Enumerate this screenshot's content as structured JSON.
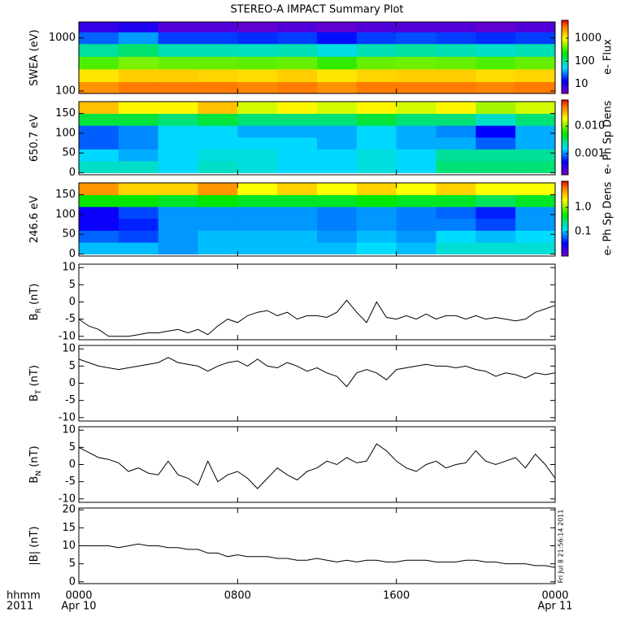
{
  "title": "STEREO-A IMPACT Summary Plot",
  "timestamp": "Fri Jul  8 21:56:14 2011",
  "xaxis": {
    "xlim": [
      0,
      24
    ],
    "xticks": [
      {
        "value": 0,
        "label": "0000"
      },
      {
        "value": 8,
        "label": "0800"
      },
      {
        "value": 16,
        "label": "1600"
      },
      {
        "value": 24,
        "label": "0000"
      }
    ],
    "dates": [
      {
        "value": 0,
        "label": "Apr 10"
      },
      {
        "value": 24,
        "label": "Apr 11"
      }
    ],
    "label": [
      "hhmm",
      "2011"
    ]
  },
  "chart_data": [
    {
      "type": "heatmap",
      "ylabel": [
        "SWEA (eV)"
      ],
      "ylog": true,
      "ylim": [
        90,
        2000
      ],
      "yticks": [
        100,
        1000
      ],
      "xbins": [
        0,
        2,
        4,
        6,
        8,
        10,
        12,
        14,
        16,
        18,
        20,
        22,
        24
      ],
      "ybins": [
        90,
        150,
        260,
        450,
        780,
        1300,
        2000
      ],
      "z": [
        [
          2500,
          3000,
          3000,
          3000,
          2800,
          3000,
          2500,
          3000,
          3000,
          3000,
          2800,
          3000
        ],
        [
          1200,
          1500,
          1500,
          1400,
          1300,
          1500,
          1200,
          1400,
          1500,
          1500,
          1300,
          1400
        ],
        [
          350,
          450,
          400,
          400,
          380,
          400,
          300,
          400,
          420,
          400,
          350,
          400
        ],
        [
          90,
          120,
          80,
          80,
          75,
          80,
          60,
          80,
          90,
          80,
          70,
          80
        ],
        [
          25,
          35,
          20,
          20,
          18,
          20,
          15,
          20,
          22,
          20,
          18,
          20
        ],
        [
          8,
          10,
          6,
          6,
          5,
          6,
          5,
          6,
          6,
          6,
          5,
          6
        ]
      ],
      "zlog": true,
      "zlim": [
        4,
        6000
      ],
      "zticks": [
        10,
        100,
        1000
      ],
      "zlabel": "e- Flux",
      "colormap": "rainbow"
    },
    {
      "type": "heatmap",
      "ylabel": [
        "650.7 eV"
      ],
      "ylog": false,
      "ylim": [
        -5,
        180
      ],
      "yticks": [
        0,
        50,
        100,
        150
      ],
      "xbins": [
        0,
        2,
        4,
        6,
        8,
        10,
        12,
        14,
        16,
        18,
        20,
        22,
        24
      ],
      "ybins": [
        0,
        30,
        60,
        90,
        120,
        150,
        180
      ],
      "z": [
        [
          0.002,
          0.002,
          0.0015,
          0.002,
          0.0018,
          0.0015,
          0.0015,
          0.0018,
          0.0015,
          0.003,
          0.003,
          0.003
        ],
        [
          0.0015,
          0.0012,
          0.0015,
          0.0018,
          0.0018,
          0.0015,
          0.0015,
          0.0018,
          0.0015,
          0.0025,
          0.0025,
          0.0025
        ],
        [
          0.0008,
          0.001,
          0.0015,
          0.0015,
          0.0015,
          0.0015,
          0.0012,
          0.0015,
          0.0012,
          0.0012,
          0.0008,
          0.0012
        ],
        [
          0.0008,
          0.001,
          0.0015,
          0.0015,
          0.0012,
          0.0012,
          0.0012,
          0.0015,
          0.0012,
          0.001,
          0.0005,
          0.0012
        ],
        [
          0.004,
          0.004,
          0.003,
          0.004,
          0.003,
          0.003,
          0.003,
          0.004,
          0.003,
          0.003,
          0.002,
          0.003
        ],
        [
          0.03,
          0.02,
          0.02,
          0.03,
          0.015,
          0.02,
          0.015,
          0.02,
          0.015,
          0.02,
          0.012,
          0.015
        ]
      ],
      "zlog": true,
      "zlim": [
        0.00017,
        0.09
      ],
      "zticks": [
        0.001,
        {
          "value": 0.01,
          "label": "0.010"
        }
      ],
      "zlabel": "e- Ph Sp Dens",
      "colormap": "rainbow"
    },
    {
      "type": "heatmap",
      "ylabel": [
        "246.6 eV"
      ],
      "ylog": false,
      "ylim": [
        -5,
        180
      ],
      "yticks": [
        0,
        50,
        100,
        150
      ],
      "xbins": [
        0,
        2,
        4,
        6,
        8,
        10,
        12,
        14,
        16,
        18,
        20,
        22,
        24
      ],
      "ybins": [
        0,
        30,
        60,
        90,
        120,
        150,
        180
      ],
      "z": [
        [
          0.1,
          0.1,
          0.08,
          0.1,
          0.1,
          0.1,
          0.1,
          0.12,
          0.1,
          0.15,
          0.15,
          0.15
        ],
        [
          0.06,
          0.05,
          0.08,
          0.1,
          0.1,
          0.1,
          0.08,
          0.1,
          0.08,
          0.12,
          0.1,
          0.12
        ],
        [
          0.03,
          0.04,
          0.08,
          0.08,
          0.08,
          0.08,
          0.07,
          0.08,
          0.07,
          0.07,
          0.05,
          0.08
        ],
        [
          0.03,
          0.05,
          0.08,
          0.08,
          0.08,
          0.08,
          0.07,
          0.08,
          0.07,
          0.06,
          0.04,
          0.08
        ],
        [
          0.5,
          0.5,
          0.4,
          0.5,
          0.4,
          0.4,
          0.4,
          0.5,
          0.4,
          0.4,
          0.3,
          0.4
        ],
        [
          5,
          3,
          3,
          5,
          2,
          3,
          2,
          3,
          2,
          3,
          2,
          2
        ]
      ],
      "zlog": true,
      "zlim": [
        0.01,
        12
      ],
      "zticks": [
        0.1,
        {
          "value": 1,
          "label": "1.0"
        }
      ],
      "zlabel": "e- Ph Sp Dens",
      "colormap": "rainbow"
    },
    {
      "type": "line",
      "ylabel": [
        "B",
        "R",
        " (nT)"
      ],
      "color": "#000000",
      "ylim": [
        -11,
        11
      ],
      "yticks": [
        -10,
        -5,
        0,
        5,
        10
      ],
      "x": [
        0,
        0.5,
        1,
        1.5,
        2,
        2.5,
        3,
        3.5,
        4,
        4.5,
        5,
        5.5,
        6,
        6.5,
        7,
        7.5,
        8,
        8.5,
        9,
        9.5,
        10,
        10.5,
        11,
        11.5,
        12,
        12.5,
        13,
        13.5,
        14,
        14.5,
        15,
        15.5,
        16,
        16.5,
        17,
        17.5,
        18,
        18.5,
        19,
        19.5,
        20,
        20.5,
        21,
        21.5,
        22,
        22.5,
        23,
        23.5,
        24
      ],
      "values": [
        -5,
        -7,
        -8,
        -10,
        -10,
        -10,
        -9.5,
        -9,
        -9,
        -8.5,
        -8,
        -9,
        -8,
        -9.5,
        -7,
        -5,
        -6,
        -4,
        -3,
        -2.5,
        -4,
        -3,
        -5,
        -4,
        -4,
        -4.5,
        -3,
        0.5,
        -3,
        -6,
        0,
        -4.5,
        -5,
        -4,
        -5,
        -3.5,
        -5,
        -4,
        -4,
        -5,
        -4,
        -5,
        -4.5,
        -5,
        -5.5,
        -5,
        -3,
        -2,
        -1
      ]
    },
    {
      "type": "line",
      "ylabel": [
        "B",
        "T",
        " (nT)"
      ],
      "color": "#000000",
      "ylim": [
        -11,
        11
      ],
      "yticks": [
        -10,
        -5,
        0,
        5,
        10
      ],
      "x": [
        0,
        0.5,
        1,
        1.5,
        2,
        2.5,
        3,
        3.5,
        4,
        4.5,
        5,
        5.5,
        6,
        6.5,
        7,
        7.5,
        8,
        8.5,
        9,
        9.5,
        10,
        10.5,
        11,
        11.5,
        12,
        12.5,
        13,
        13.5,
        14,
        14.5,
        15,
        15.5,
        16,
        16.5,
        17,
        17.5,
        18,
        18.5,
        19,
        19.5,
        20,
        20.5,
        21,
        21.5,
        22,
        22.5,
        23,
        23.5,
        24
      ],
      "values": [
        7,
        6,
        5,
        4.5,
        4,
        4.5,
        5,
        5.5,
        6,
        7.5,
        6,
        5.5,
        5,
        3.5,
        5,
        6,
        6.5,
        5,
        7,
        5,
        4.5,
        6,
        5,
        3.5,
        4.5,
        3,
        2,
        -1,
        3,
        4,
        3,
        1,
        4,
        4.5,
        5,
        5.5,
        5,
        5,
        4.5,
        5,
        4,
        3.5,
        2,
        3,
        2.5,
        1.5,
        3,
        2.5,
        3
      ]
    },
    {
      "type": "line",
      "ylabel": [
        "B",
        "N",
        " (nT)"
      ],
      "color": "#000000",
      "ylim": [
        -11,
        11
      ],
      "yticks": [
        -10,
        -5,
        0,
        5,
        10
      ],
      "x": [
        0,
        0.5,
        1,
        1.5,
        2,
        2.5,
        3,
        3.5,
        4,
        4.5,
        5,
        5.5,
        6,
        6.5,
        7,
        7.5,
        8,
        8.5,
        9,
        9.5,
        10,
        10.5,
        11,
        11.5,
        12,
        12.5,
        13,
        13.5,
        14,
        14.5,
        15,
        15.5,
        16,
        16.5,
        17,
        17.5,
        18,
        18.5,
        19,
        19.5,
        20,
        20.5,
        21,
        21.5,
        22,
        22.5,
        23,
        23.5,
        24
      ],
      "values": [
        5,
        3.5,
        2,
        1.5,
        0.5,
        -2,
        -1,
        -2.5,
        -3,
        1,
        -3,
        -4,
        -6,
        1,
        -5,
        -3,
        -2,
        -4,
        -7,
        -4,
        -1,
        -3,
        -4.5,
        -2,
        -1,
        1,
        0,
        2,
        0.5,
        1,
        6,
        4,
        1,
        -1,
        -2,
        0,
        1,
        -1,
        0,
        0.5,
        4,
        1,
        0,
        1,
        2,
        -1,
        3,
        0,
        -4
      ]
    },
    {
      "type": "line",
      "ylabel": [
        "|B| (nT)"
      ],
      "color": "#000000",
      "ylim": [
        -0.5,
        20.5
      ],
      "yticks": [
        0,
        5,
        10,
        15,
        20
      ],
      "x": [
        0,
        0.5,
        1,
        1.5,
        2,
        2.5,
        3,
        3.5,
        4,
        4.5,
        5,
        5.5,
        6,
        6.5,
        7,
        7.5,
        8,
        8.5,
        9,
        9.5,
        10,
        10.5,
        11,
        11.5,
        12,
        12.5,
        13,
        13.5,
        14,
        14.5,
        15,
        15.5,
        16,
        16.5,
        17,
        17.5,
        18,
        18.5,
        19,
        19.5,
        20,
        20.5,
        21,
        21.5,
        22,
        22.5,
        23,
        23.5,
        24
      ],
      "values": [
        10,
        10,
        10,
        10,
        9.5,
        10,
        10.5,
        10,
        10,
        9.5,
        9.5,
        9,
        9,
        8,
        8,
        7,
        7.5,
        7,
        7,
        7,
        6.5,
        6.5,
        6,
        6,
        6.5,
        6,
        5.5,
        6,
        5.5,
        6,
        6,
        5.5,
        5.5,
        6,
        6,
        6,
        5.5,
        5.5,
        5.5,
        6,
        6,
        5.5,
        5.5,
        5,
        5,
        5,
        4.5,
        4.5,
        4
      ]
    }
  ]
}
